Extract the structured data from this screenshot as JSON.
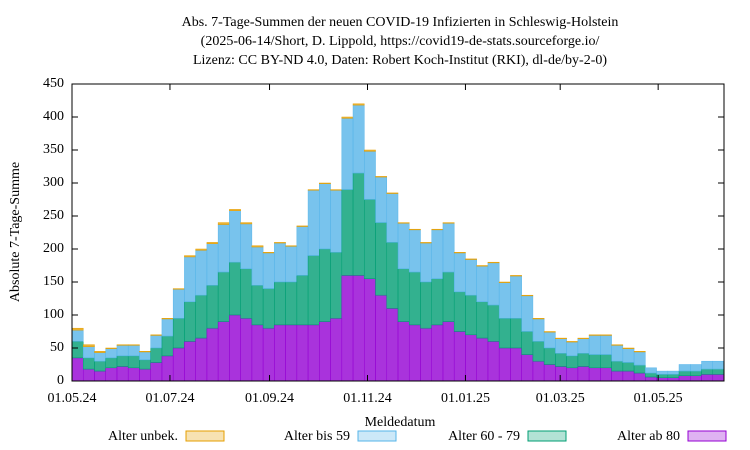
{
  "chart_data": {
    "type": "stacked-bar",
    "title": [
      "Abs. 7-Tage-Summen der neuen COVID-19 Infizierten in Schleswig-Holstein",
      "(2025-06-14/Short, D. Lippold, https://covid19-de-stats.sourceforge.io/",
      "Lizenz: CC BY-ND 4.0, Daten: Robert Koch-Institut (RKI), dl-de/by-2-0)"
    ],
    "x_label": "Meldedatum",
    "y_label": "Absolute 7-Tage-Summe",
    "x": [
      "2024-05-01",
      "2024-05-08",
      "2024-05-15",
      "2024-05-22",
      "2024-05-29",
      "2024-06-05",
      "2024-06-12",
      "2024-06-19",
      "2024-06-26",
      "2024-07-03",
      "2024-07-10",
      "2024-07-17",
      "2024-07-24",
      "2024-07-31",
      "2024-08-07",
      "2024-08-14",
      "2024-08-21",
      "2024-08-28",
      "2024-09-04",
      "2024-09-11",
      "2024-09-18",
      "2024-09-25",
      "2024-10-02",
      "2024-10-09",
      "2024-10-16",
      "2024-10-23",
      "2024-10-30",
      "2024-11-06",
      "2024-11-13",
      "2024-11-20",
      "2024-11-27",
      "2024-12-04",
      "2024-12-11",
      "2024-12-18",
      "2024-12-25",
      "2025-01-01",
      "2025-01-08",
      "2025-01-15",
      "2025-01-22",
      "2025-01-29",
      "2025-02-05",
      "2025-02-12",
      "2025-02-19",
      "2025-02-26",
      "2025-03-05",
      "2025-03-12",
      "2025-03-19",
      "2025-03-26",
      "2025-04-02",
      "2025-04-09",
      "2025-04-16",
      "2025-04-23",
      "2025-04-30",
      "2025-05-07",
      "2025-05-14",
      "2025-05-21",
      "2025-05-28",
      "2025-06-04"
    ],
    "bar_days": 7,
    "series": [
      {
        "name": "Alter ab 80",
        "color": "#9400d3",
        "values": [
          35,
          18,
          15,
          20,
          22,
          20,
          18,
          28,
          38,
          50,
          60,
          65,
          80,
          90,
          100,
          95,
          85,
          80,
          85,
          85,
          85,
          85,
          90,
          95,
          160,
          160,
          155,
          130,
          110,
          90,
          85,
          80,
          85,
          90,
          75,
          70,
          65,
          60,
          50,
          50,
          40,
          30,
          25,
          22,
          20,
          22,
          20,
          20,
          15,
          15,
          12,
          6,
          5,
          5,
          8,
          8,
          10,
          10
        ]
      },
      {
        "name": "Alter 60 - 79",
        "color": "#009e73",
        "values": [
          25,
          17,
          15,
          15,
          16,
          18,
          14,
          22,
          30,
          45,
          60,
          65,
          65,
          75,
          80,
          75,
          60,
          60,
          65,
          65,
          75,
          105,
          110,
          100,
          130,
          155,
          120,
          110,
          100,
          80,
          80,
          70,
          70,
          75,
          60,
          60,
          55,
          55,
          45,
          45,
          35,
          30,
          25,
          20,
          18,
          20,
          20,
          20,
          15,
          13,
          12,
          6,
          5,
          5,
          7,
          7,
          8,
          8
        ]
      },
      {
        "name": "Alter bis 59",
        "color": "#56b4e9",
        "values": [
          17,
          17,
          13,
          14,
          16,
          16,
          12,
          19,
          26,
          44,
          68,
          68,
          63,
          72,
          78,
          68,
          58,
          54,
          59,
          54,
          74,
          99,
          99,
          94,
          108,
          103,
          73,
          69,
          74,
          69,
          64,
          59,
          74,
          74,
          59,
          54,
          54,
          64,
          54,
          64,
          54,
          34,
          24,
          22,
          21,
          22,
          29,
          29,
          24,
          21,
          20,
          8,
          5,
          5,
          10,
          10,
          12,
          12
        ]
      },
      {
        "name": "Alter unbek.",
        "color": "#e69f00",
        "values": [
          3,
          3,
          2,
          1,
          1,
          1,
          1,
          1,
          1,
          1,
          2,
          2,
          2,
          3,
          2,
          2,
          2,
          1,
          1,
          1,
          1,
          1,
          1,
          1,
          2,
          2,
          2,
          1,
          1,
          1,
          1,
          1,
          1,
          1,
          1,
          1,
          1,
          1,
          1,
          1,
          1,
          1,
          1,
          1,
          1,
          1,
          1,
          1,
          1,
          1,
          1,
          0,
          0,
          0,
          0,
          0,
          0,
          0
        ]
      }
    ],
    "legend_order": [
      3,
      2,
      1,
      0
    ],
    "xlim": [
      "2024-05-01",
      "2025-06-11"
    ],
    "xticks": [
      {
        "value": "2024-05-01",
        "label": "01.05.24"
      },
      {
        "value": "2024-07-01",
        "label": "01.07.24"
      },
      {
        "value": "2024-09-01",
        "label": "01.09.24"
      },
      {
        "value": "2024-11-01",
        "label": "01.11.24"
      },
      {
        "value": "2025-01-01",
        "label": "01.01.25"
      },
      {
        "value": "2025-03-01",
        "label": "01.03.25"
      },
      {
        "value": "2025-05-01",
        "label": "01.05.25"
      }
    ],
    "ylim": [
      0,
      450
    ],
    "yticks": [
      0,
      50,
      100,
      150,
      200,
      250,
      300,
      350,
      400,
      450
    ]
  }
}
